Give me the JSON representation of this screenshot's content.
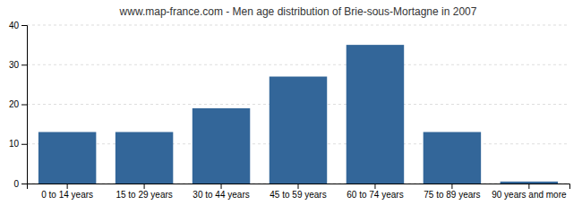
{
  "chart_data": {
    "type": "bar",
    "title": "www.map-france.com - Men age distribution of Brie-sous-Mortagne in 2007",
    "categories": [
      "0 to 14 years",
      "15 to 29 years",
      "30 to 44 years",
      "45 to 59 years",
      "60 to 74 years",
      "75 to 89 years",
      "90 years and more"
    ],
    "values": [
      13,
      13,
      19,
      27,
      35,
      13,
      0.5
    ],
    "color": "#336699",
    "ylim": [
      0,
      40
    ],
    "yticks": [
      0,
      10,
      20,
      30,
      40
    ],
    "grid": true
  }
}
